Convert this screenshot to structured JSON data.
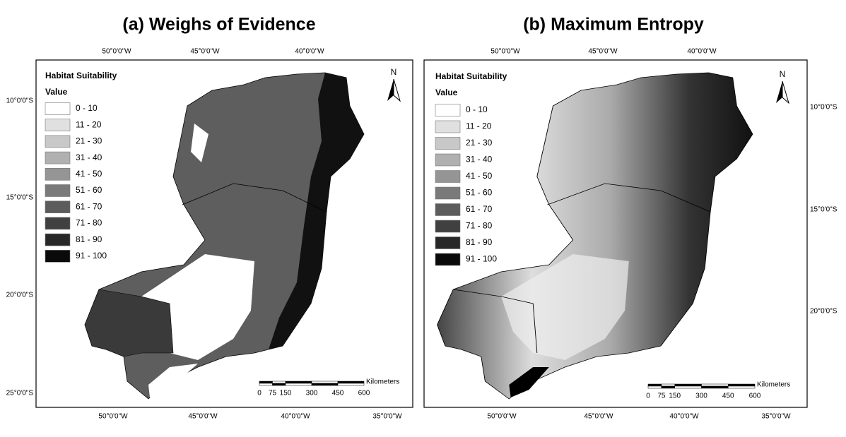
{
  "panels": [
    {
      "title": "(a) Weighs of Evidence",
      "top_labels": [
        "50°0'0\"W",
        "45°0'0\"W",
        "40°0'0\"W"
      ],
      "bottom_labels": [
        "50°0'0\"W",
        "45°0'0\"W",
        "40°0'0\"W",
        "35°0'0\"W"
      ],
      "side_labels": [
        "10°0'0\"S",
        "15°0'0\"S",
        "20°0'0\"S",
        "25°0'0\"S"
      ],
      "legend": {
        "title": "Habitat Suitability",
        "subtitle": "Value",
        "classes": [
          {
            "label": "0 - 10",
            "color": "#ffffff"
          },
          {
            "label": "11 - 20",
            "color": "#e0e0e0"
          },
          {
            "label": "21 - 30",
            "color": "#c8c8c8"
          },
          {
            "label": "31 - 40",
            "color": "#b0b0b0"
          },
          {
            "label": "41 - 50",
            "color": "#959595"
          },
          {
            "label": "51 - 60",
            "color": "#7a7a7a"
          },
          {
            "label": "61 - 70",
            "color": "#5c5c5c"
          },
          {
            "label": "71 - 80",
            "color": "#404040"
          },
          {
            "label": "81 - 90",
            "color": "#282828"
          },
          {
            "label": "91 - 100",
            "color": "#0a0a0a"
          }
        ]
      },
      "north": "N",
      "scale": {
        "ticks": [
          0,
          75,
          150,
          300,
          450,
          600
        ],
        "unit": "Kilometers"
      }
    },
    {
      "title": "(b) Maximum Entropy",
      "top_labels": [
        "50°0'0\"W",
        "45°0'0\"W",
        "40°0'0\"W"
      ],
      "bottom_labels": [
        "50°0'0\"W",
        "45°0'0\"W",
        "40°0'0\"W",
        "35°0'0\"W"
      ],
      "side_labels": [
        "10°0'0\"S",
        "15°0'0\"S",
        "20°0'0\"S"
      ],
      "legend": {
        "title": "Habitat Suitability",
        "subtitle": "Value",
        "classes": [
          {
            "label": "0 - 10",
            "color": "#ffffff"
          },
          {
            "label": "11 - 20",
            "color": "#e0e0e0"
          },
          {
            "label": "21 - 30",
            "color": "#c8c8c8"
          },
          {
            "label": "31 - 40",
            "color": "#b0b0b0"
          },
          {
            "label": "41 - 50",
            "color": "#959595"
          },
          {
            "label": "51 - 60",
            "color": "#7a7a7a"
          },
          {
            "label": "61 - 70",
            "color": "#5c5c5c"
          },
          {
            "label": "71 - 80",
            "color": "#404040"
          },
          {
            "label": "81 - 90",
            "color": "#282828"
          },
          {
            "label": "91 - 100",
            "color": "#0a0a0a"
          }
        ]
      },
      "north": "N",
      "scale": {
        "ticks": [
          0,
          75,
          150,
          300,
          450,
          600
        ],
        "unit": "Kilometers"
      }
    }
  ]
}
